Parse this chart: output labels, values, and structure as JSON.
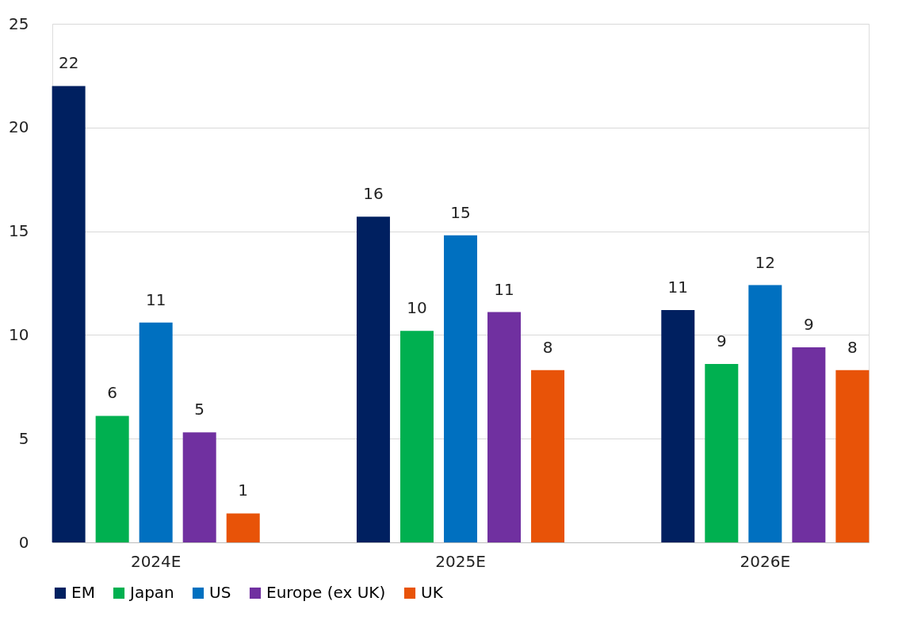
{
  "chart_data": {
    "type": "bar",
    "categories": [
      "2024E",
      "2025E",
      "2026E"
    ],
    "series": [
      {
        "name": "EM",
        "color": "#002060",
        "values": [
          22.0,
          15.7,
          11.2
        ],
        "value_labels": [
          "22",
          "16",
          "11"
        ]
      },
      {
        "name": "Japan",
        "color": "#00b050",
        "values": [
          6.1,
          10.2,
          8.6
        ],
        "value_labels": [
          "6",
          "10",
          "9"
        ]
      },
      {
        "name": "US",
        "color": "#0070c0",
        "values": [
          10.6,
          14.8,
          12.4
        ],
        "value_labels": [
          "11",
          "15",
          "12"
        ]
      },
      {
        "name": "Europe (ex UK)",
        "color": "#7030a0",
        "values": [
          5.3,
          11.1,
          9.4
        ],
        "value_labels": [
          "5",
          "11",
          "9"
        ]
      },
      {
        "name": "UK",
        "color": "#e85308",
        "values": [
          1.4,
          8.3,
          8.3
        ],
        "value_labels": [
          "1",
          "8",
          "8"
        ]
      }
    ],
    "ylim": [
      0,
      25
    ],
    "yticks": [
      0,
      5,
      10,
      15,
      20,
      25
    ],
    "grid": "y",
    "legend": "bottom"
  }
}
